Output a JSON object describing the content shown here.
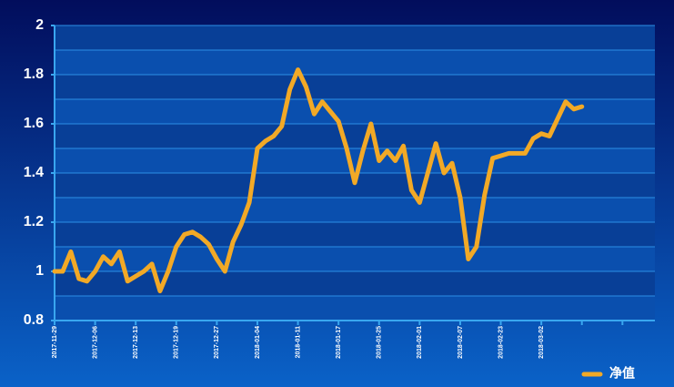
{
  "chart_data": {
    "type": "line",
    "categories": [
      "2017-11-29",
      null,
      null,
      null,
      null,
      "2017-12-06",
      null,
      null,
      null,
      null,
      "2017-12-13",
      null,
      null,
      null,
      null,
      "2017-12-19",
      null,
      null,
      null,
      null,
      "2017-12-27",
      null,
      null,
      null,
      null,
      "2018-01-04",
      null,
      null,
      null,
      null,
      "2018-01-11",
      null,
      null,
      null,
      null,
      "2018-01-17",
      null,
      null,
      null,
      null,
      "2018-01-25",
      null,
      null,
      null,
      null,
      "2018-02-01",
      null,
      null,
      null,
      null,
      "2018-02-07",
      null,
      null,
      null,
      null,
      "2018-02-23",
      null,
      null,
      null,
      null,
      "2018-03-02",
      null,
      null,
      null,
      null,
      null,
      null,
      null,
      null,
      null,
      null,
      null,
      null,
      null,
      null
    ],
    "series": [
      {
        "name": "净值",
        "color": "#f2a926",
        "values": [
          1.0,
          1.0,
          1.08,
          0.97,
          0.96,
          1.0,
          1.06,
          1.03,
          1.08,
          0.96,
          0.98,
          1.0,
          1.03,
          0.92,
          1.0,
          1.1,
          1.15,
          1.16,
          1.14,
          1.11,
          1.05,
          1.0,
          1.12,
          1.19,
          1.28,
          1.5,
          1.53,
          1.55,
          1.59,
          1.74,
          1.82,
          1.75,
          1.64,
          1.69,
          1.65,
          1.61,
          1.5,
          1.36,
          1.49,
          1.6,
          1.45,
          1.49,
          1.45,
          1.51,
          1.33,
          1.28,
          1.4,
          1.52,
          1.4,
          1.44,
          1.3,
          1.05,
          1.1,
          1.31,
          1.46,
          1.47,
          1.48,
          1.48,
          1.48,
          1.54,
          1.56,
          1.55,
          1.62,
          1.69,
          1.66,
          1.67,
          null,
          null,
          null,
          null,
          null,
          null,
          null,
          null,
          null
        ]
      }
    ],
    "ylim": [
      0.8,
      2
    ],
    "yticks": [
      0.8,
      1,
      1.2,
      1.4,
      1.6,
      1.8,
      2
    ],
    "minor_yticks": [
      0.9,
      1.1,
      1.3,
      1.5,
      1.7,
      1.9
    ],
    "grid": true,
    "legend": "bottom-right"
  }
}
